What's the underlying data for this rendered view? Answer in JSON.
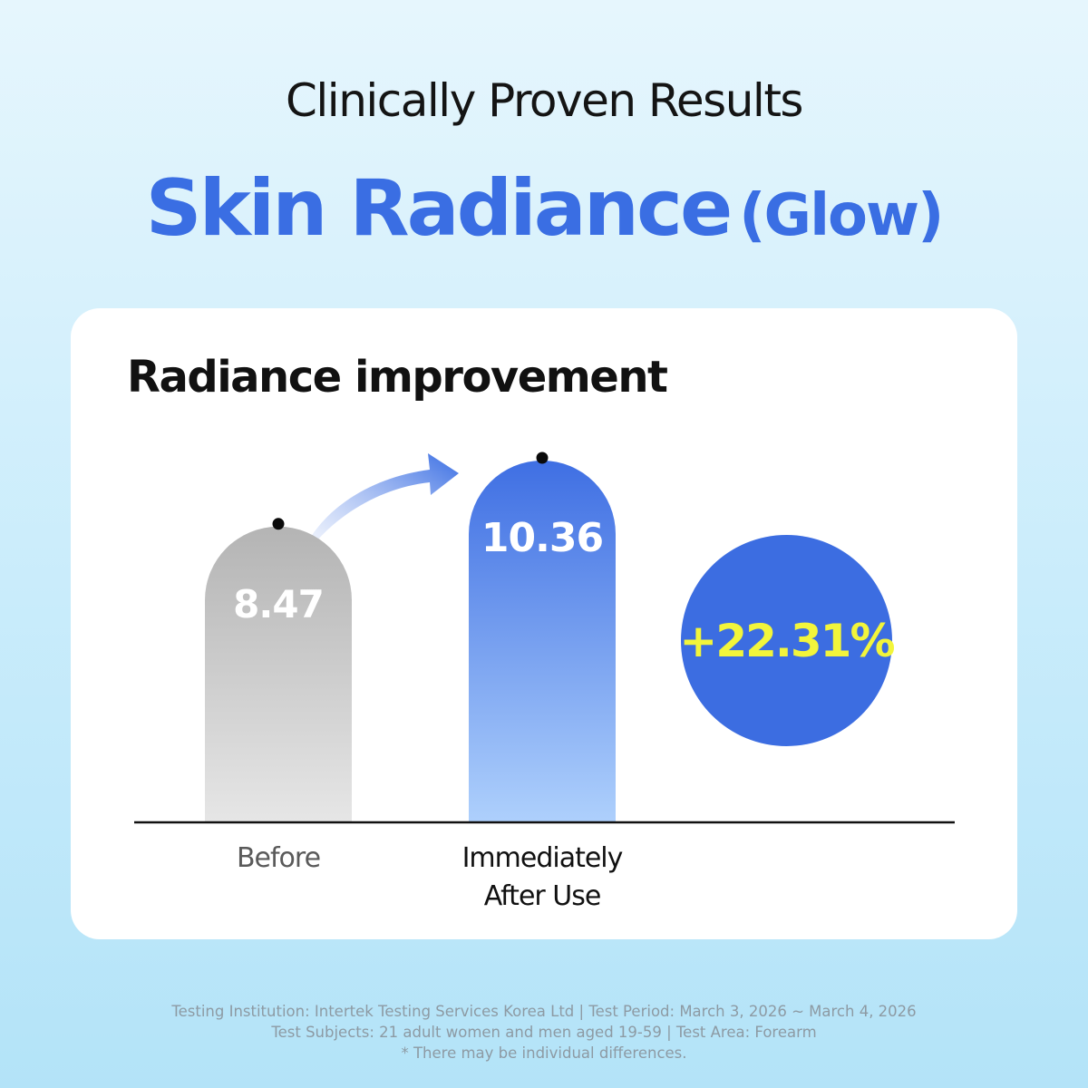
{
  "header": {
    "headline": "Clinically Proven Results",
    "title_main": "Skin Radiance",
    "title_sub": "(Glow)"
  },
  "chart_data": {
    "type": "bar",
    "title": "Radiance improvement",
    "categories": [
      "Before",
      "Immediately\nAfter Use"
    ],
    "values": [
      8.47,
      10.36
    ],
    "ylim": [
      0,
      10.36
    ],
    "grid": false,
    "value_labels": [
      "8.47",
      "10.36"
    ],
    "bar_colors": [
      "#c2c2c2",
      "#4a7ee6"
    ],
    "annotation": "+22.31%",
    "annotation_color": "#f2f53b",
    "badge_color": "#3c6de1"
  },
  "footnotes": [
    "Testing Institution: Intertek Testing Services Korea Ltd  |  Test Period: March 3, 2026 ~ March 4, 2026",
    "Test Subjects: 21 adult women and men aged 19-59  |  Test Area: Forearm",
    "* There may be individual differences."
  ]
}
